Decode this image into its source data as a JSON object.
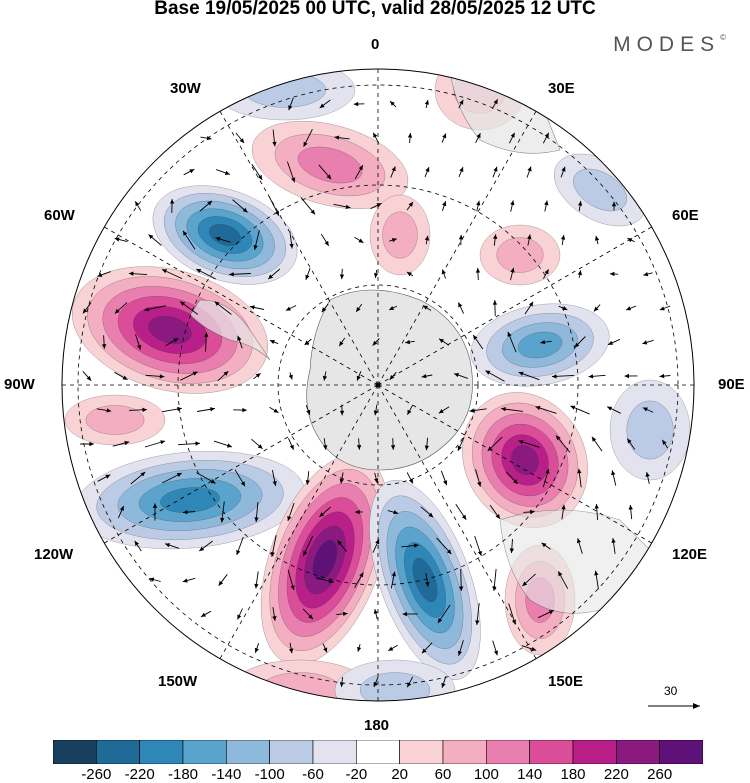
{
  "title": "Base 19/05/2025 00 UTC, valid 28/05/2025 12 UTC",
  "logo": "MODES",
  "logo_mark": "©",
  "longitude_labels": [
    "0",
    "30E",
    "60E",
    "90E",
    "120E",
    "150E",
    "180",
    "150W",
    "120W",
    "90W",
    "60W",
    "30W"
  ],
  "reference_vector": "30",
  "colorbar": {
    "ticks": [
      "-260",
      "-220",
      "-180",
      "-140",
      "-100",
      "-60",
      "-20",
      "20",
      "60",
      "100",
      "140",
      "180",
      "220",
      "260"
    ],
    "colors": [
      "#173f5f",
      "#1f6a96",
      "#2f87b8",
      "#5aa3cc",
      "#8fb9da",
      "#bccbe5",
      "#e3e3f0",
      "#ffffff",
      "#f8d2d4",
      "#f3aec1",
      "#e97fae",
      "#db4c99",
      "#b81f88",
      "#8a1a80",
      "#5e1277"
    ]
  }
}
